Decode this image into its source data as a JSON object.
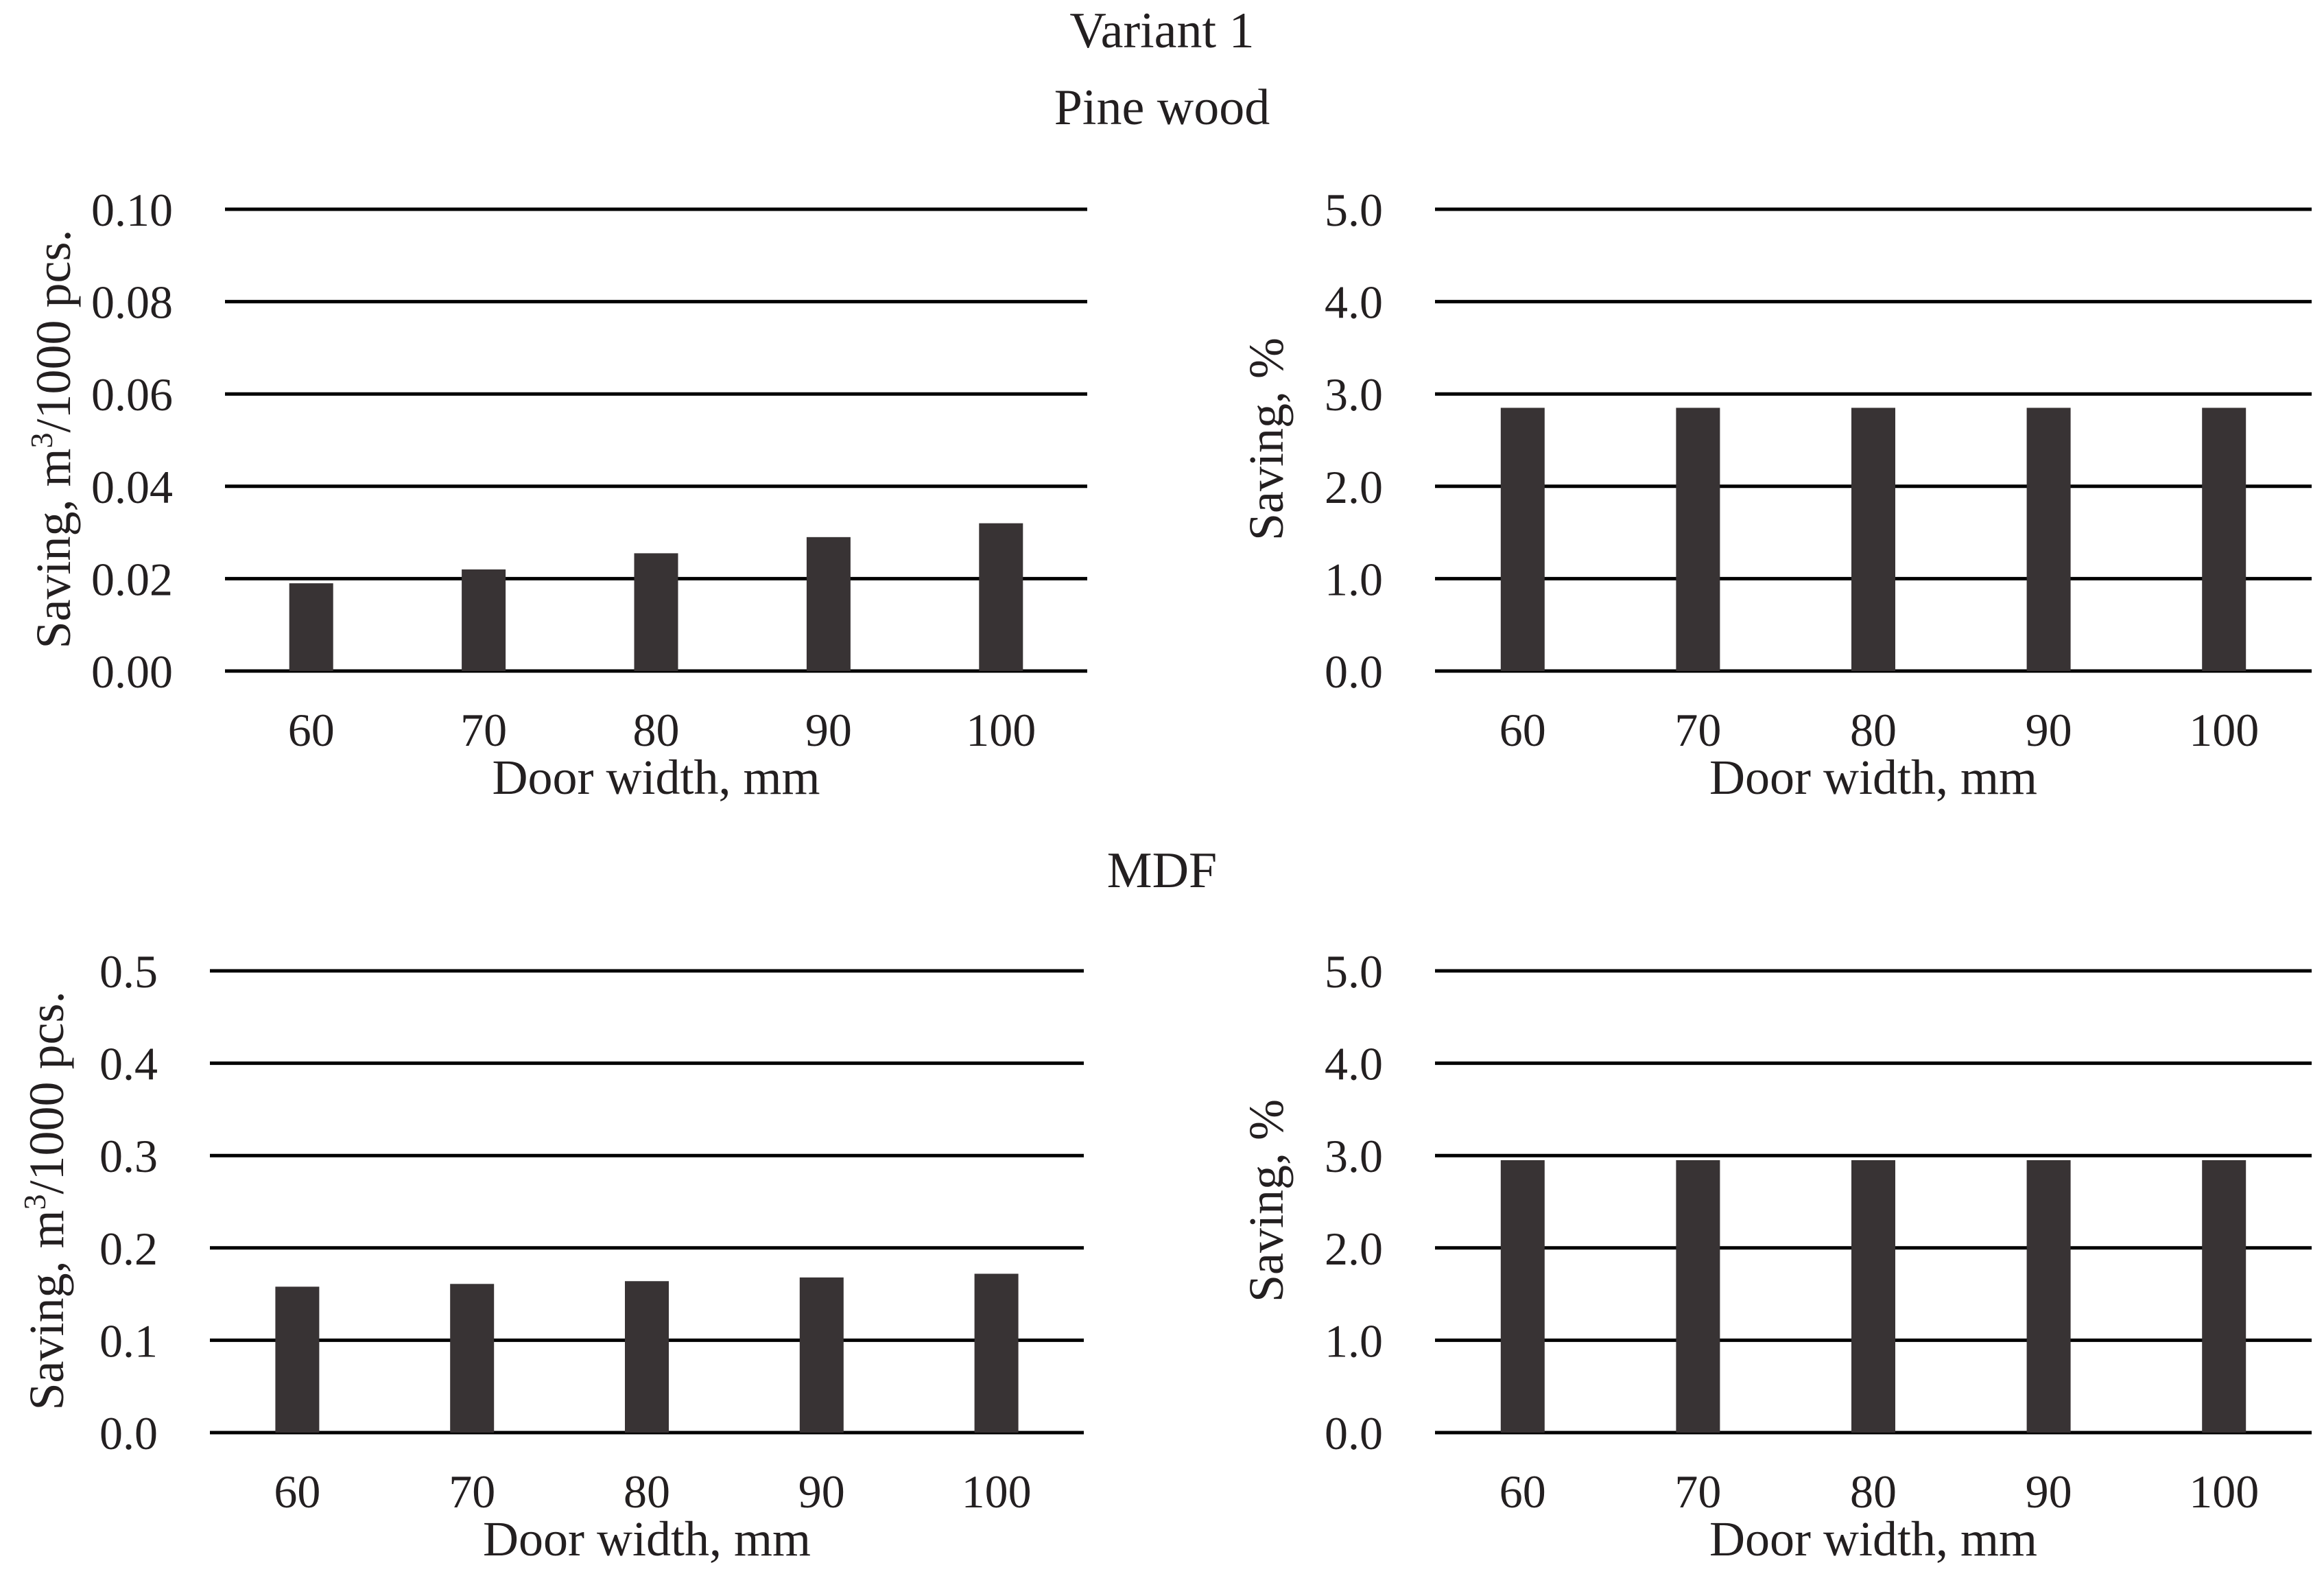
{
  "figure": {
    "title": "Variant 1",
    "sections": [
      "Pine wood",
      "MDF"
    ]
  },
  "colors": {
    "bar": "#383334",
    "grid": "#000000",
    "text": "#231f20"
  },
  "chart_data": [
    {
      "type": "bar",
      "section": "Pine wood",
      "categories": [
        "60",
        "70",
        "80",
        "90",
        "100"
      ],
      "values": [
        0.019,
        0.022,
        0.0255,
        0.029,
        0.032
      ],
      "xlabel": "Door width, mm",
      "ylabel_main": "Saving,  m",
      "ylabel_sup": "3",
      "ylabel_rest": "/1000 pcs.",
      "ylim": [
        0,
        0.1
      ],
      "yticks": [
        "0.00",
        "0.02",
        "0.04",
        "0.06",
        "0.08",
        "0.10"
      ],
      "grid": true
    },
    {
      "type": "bar",
      "section": "Pine wood",
      "categories": [
        "60",
        "70",
        "80",
        "90",
        "100"
      ],
      "values": [
        2.85,
        2.85,
        2.85,
        2.85,
        2.85
      ],
      "xlabel": "Door width, mm",
      "ylabel_main": "Saving, %",
      "ylabel_sup": "",
      "ylabel_rest": "",
      "ylim": [
        0,
        5
      ],
      "yticks": [
        "0.0",
        "1.0",
        "2.0",
        "3.0",
        "4.0",
        "5.0"
      ],
      "grid": true
    },
    {
      "type": "bar",
      "section": "MDF",
      "categories": [
        "60",
        "70",
        "80",
        "90",
        "100"
      ],
      "values": [
        0.158,
        0.161,
        0.164,
        0.168,
        0.172
      ],
      "xlabel": "Door width, mm",
      "ylabel_main": "Saving,  m",
      "ylabel_sup": "3",
      "ylabel_rest": "/1000 pcs.",
      "ylim": [
        0,
        0.5
      ],
      "yticks": [
        "0.0",
        "0.1",
        "0.2",
        "0.3",
        "0.4",
        "0.5"
      ],
      "grid": true
    },
    {
      "type": "bar",
      "section": "MDF",
      "categories": [
        "60",
        "70",
        "80",
        "90",
        "100"
      ],
      "values": [
        2.95,
        2.95,
        2.95,
        2.95,
        2.95
      ],
      "xlabel": "Door width, mm",
      "ylabel_main": "Saving, %",
      "ylabel_sup": "",
      "ylabel_rest": "",
      "ylim": [
        0,
        5
      ],
      "yticks": [
        "0.0",
        "1.0",
        "2.0",
        "3.0",
        "4.0",
        "5.0"
      ],
      "grid": true
    }
  ]
}
